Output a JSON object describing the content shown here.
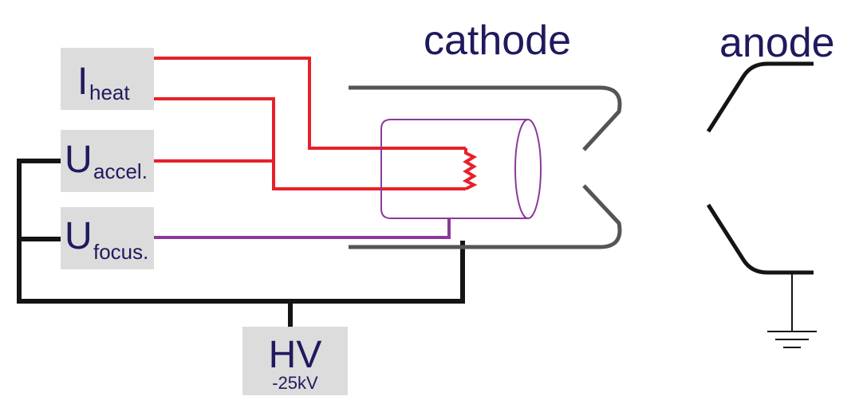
{
  "labels": {
    "cathode": "cathode",
    "anode": "anode",
    "heat_main": "I",
    "heat_sub": "heat",
    "accel_main": "U",
    "accel_sub": "accel.",
    "focus_main": "U",
    "focus_sub": "focus.",
    "hv_main": "HV",
    "hv_sub": "-25kV"
  },
  "colors": {
    "text": "#1f1a5e",
    "box_fill": "#dcdcdc",
    "wire_black": "#141414",
    "wire_red": "#e8202a",
    "wire_purple": "#8a3a9a",
    "cathode_gray": "#555555"
  }
}
